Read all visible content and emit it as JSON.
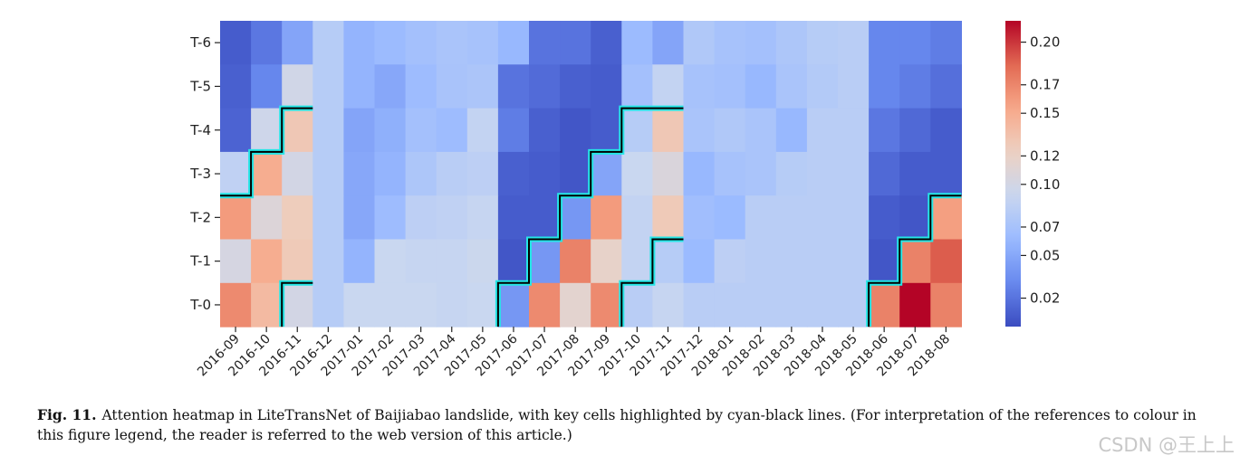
{
  "chart_data": {
    "type": "heatmap",
    "rows": [
      "T-6",
      "T-5",
      "T-4",
      "T-3",
      "T-2",
      "T-1",
      "T-0"
    ],
    "columns": [
      "2016-09",
      "2016-10",
      "2016-11",
      "2016-12",
      "2017-01",
      "2017-02",
      "2017-03",
      "2017-04",
      "2017-05",
      "2017-06",
      "2017-07",
      "2017-08",
      "2017-09",
      "2017-10",
      "2017-11",
      "2017-12",
      "2018-01",
      "2018-02",
      "2018-03",
      "2018-04",
      "2018-05",
      "2018-06",
      "2018-07",
      "2018-08"
    ],
    "values": [
      [
        0.008,
        0.022,
        0.048,
        0.08,
        0.058,
        0.063,
        0.068,
        0.072,
        0.07,
        0.06,
        0.02,
        0.02,
        0.01,
        0.063,
        0.048,
        0.076,
        0.07,
        0.068,
        0.074,
        0.08,
        0.082,
        0.03,
        0.03,
        0.025
      ],
      [
        0.01,
        0.03,
        0.098,
        0.08,
        0.058,
        0.05,
        0.064,
        0.071,
        0.073,
        0.02,
        0.016,
        0.01,
        0.008,
        0.068,
        0.088,
        0.07,
        0.068,
        0.06,
        0.072,
        0.078,
        0.082,
        0.03,
        0.025,
        0.018
      ],
      [
        0.012,
        0.096,
        0.13,
        0.08,
        0.048,
        0.055,
        0.068,
        0.064,
        0.088,
        0.025,
        0.01,
        0.005,
        0.008,
        0.08,
        0.13,
        0.072,
        0.076,
        0.072,
        0.06,
        0.082,
        0.082,
        0.022,
        0.015,
        0.008
      ],
      [
        0.086,
        0.15,
        0.1,
        0.08,
        0.05,
        0.058,
        0.074,
        0.082,
        0.084,
        0.01,
        0.008,
        0.005,
        0.048,
        0.092,
        0.106,
        0.06,
        0.07,
        0.072,
        0.08,
        0.082,
        0.082,
        0.015,
        0.008,
        0.008
      ],
      [
        0.16,
        0.108,
        0.126,
        0.08,
        0.05,
        0.064,
        0.084,
        0.086,
        0.09,
        0.008,
        0.008,
        0.04,
        0.16,
        0.088,
        0.128,
        0.066,
        0.062,
        0.082,
        0.082,
        0.082,
        0.082,
        0.008,
        0.005,
        0.158
      ],
      [
        0.102,
        0.15,
        0.128,
        0.08,
        0.058,
        0.092,
        0.09,
        0.09,
        0.094,
        0.005,
        0.04,
        0.172,
        0.118,
        0.088,
        0.08,
        0.062,
        0.084,
        0.082,
        0.082,
        0.082,
        0.082,
        0.005,
        0.172,
        0.188
      ],
      [
        0.168,
        0.14,
        0.1,
        0.08,
        0.092,
        0.092,
        0.092,
        0.09,
        0.092,
        0.04,
        0.168,
        0.114,
        0.168,
        0.082,
        0.09,
        0.082,
        0.082,
        0.082,
        0.082,
        0.082,
        0.082,
        0.172,
        0.215,
        0.172
      ]
    ],
    "colorbar": {
      "ticks": [
        0.02,
        0.05,
        0.07,
        0.1,
        0.12,
        0.15,
        0.17,
        0.2
      ],
      "tick_labels": [
        "0.02",
        "0.05",
        "0.07",
        "0.10",
        "0.12",
        "0.15",
        "0.17",
        "0.20"
      ],
      "range": [
        0.0,
        0.215
      ],
      "colormap": "coolwarm"
    },
    "highlight_color": "#25e6e6",
    "highlights": [
      [
        [
          4,
          0
        ],
        [
          4,
          1
        ],
        [
          3,
          1
        ],
        [
          3,
          2
        ],
        [
          2,
          2
        ],
        [
          2,
          3
        ]
      ],
      [
        [
          7,
          2
        ],
        [
          6,
          2
        ],
        [
          6,
          3
        ]
      ],
      [
        [
          7,
          9
        ],
        [
          6,
          9
        ],
        [
          6,
          10
        ],
        [
          5,
          10
        ],
        [
          5,
          11
        ],
        [
          4,
          11
        ],
        [
          4,
          12
        ],
        [
          3,
          12
        ],
        [
          3,
          13
        ],
        [
          2,
          13
        ],
        [
          2,
          14
        ],
        [
          2,
          15
        ]
      ],
      [
        [
          7,
          13
        ],
        [
          6,
          13
        ],
        [
          6,
          14
        ],
        [
          5,
          14
        ],
        [
          5,
          15
        ]
      ],
      [
        [
          7,
          21
        ],
        [
          6,
          21
        ],
        [
          6,
          22
        ],
        [
          5,
          22
        ],
        [
          5,
          23
        ],
        [
          4,
          23
        ],
        [
          4,
          24
        ]
      ]
    ]
  },
  "caption": {
    "label": "Fig. 11.",
    "text": "Attention heatmap in LiteTransNet of Baijiabao landslide, with key cells highlighted by cyan-black lines. (For interpretation of the references to colour in this figure legend, the reader is referred to the web version of this article.)"
  },
  "watermark": "CSDN @王上上"
}
